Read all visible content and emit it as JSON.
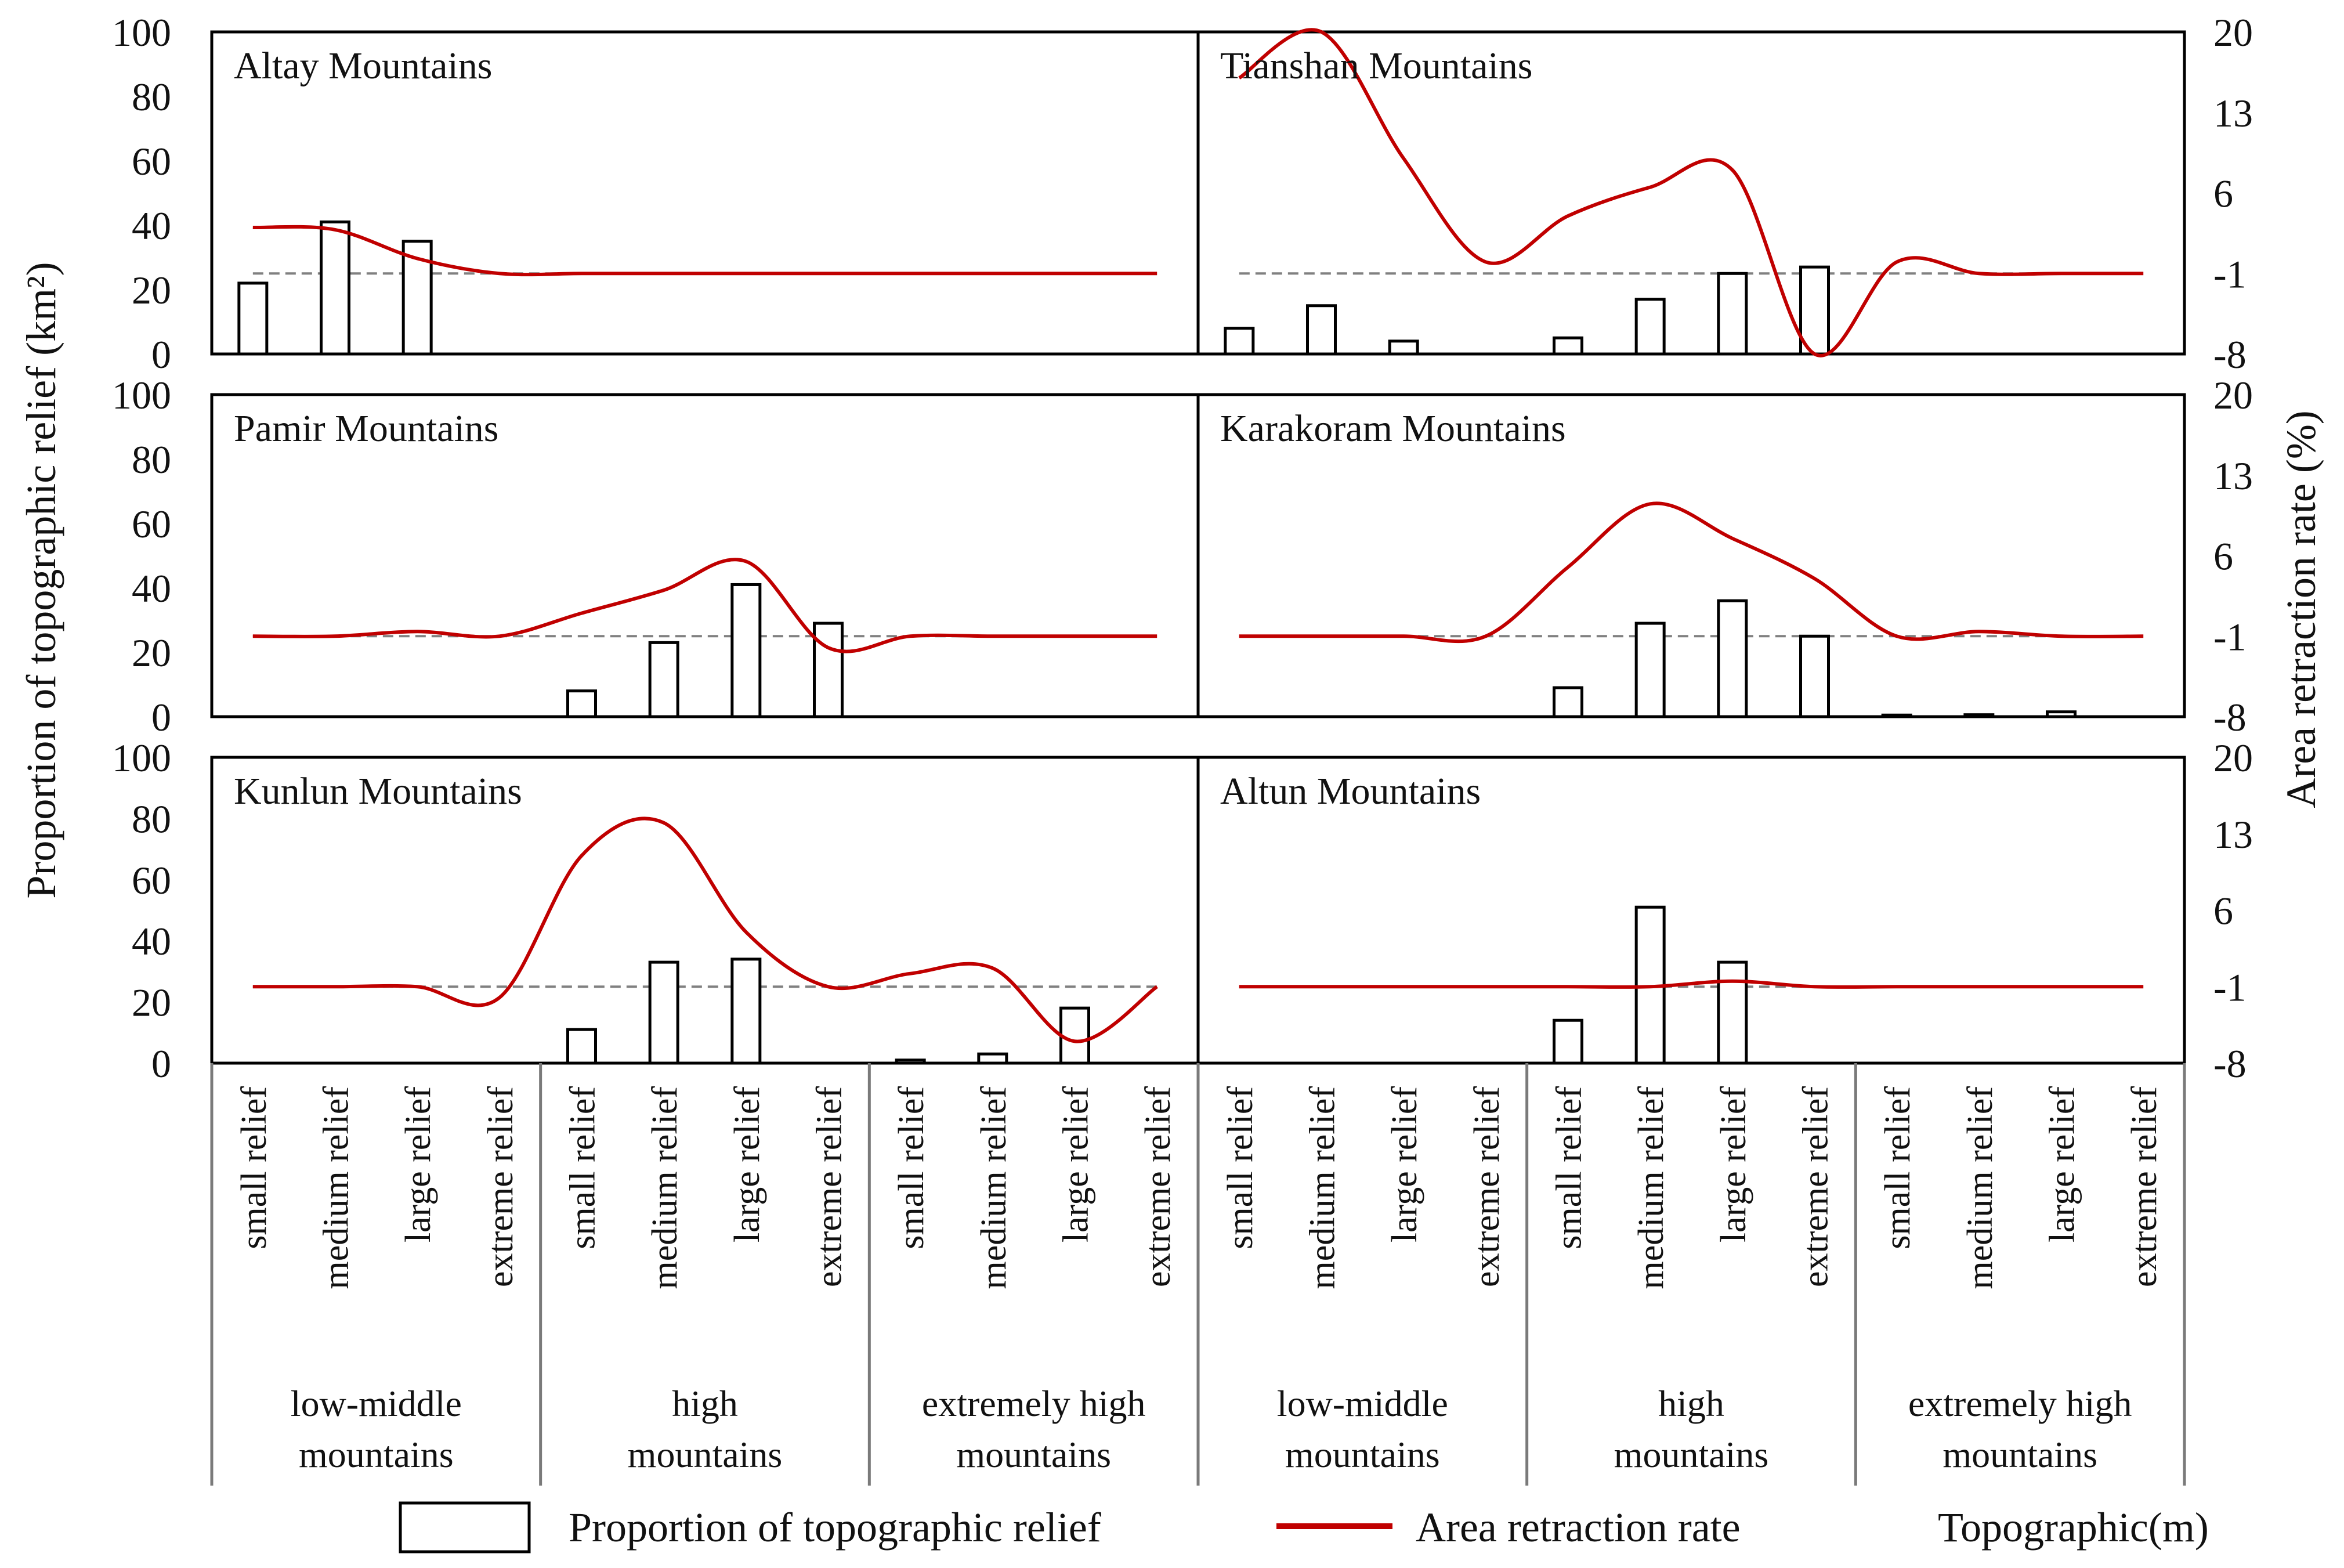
{
  "chart_data": {
    "type": "bar",
    "y_axis_left": {
      "label": "Proportion of topographic relief (km²)",
      "ticks": [
        "100",
        "80",
        "60",
        "40",
        "20",
        "0"
      ],
      "range": [
        0,
        100
      ]
    },
    "y_axis_right": {
      "label": "Area retraction rate (%)",
      "ticks": [
        "20",
        "13",
        "6",
        "-1",
        "-8"
      ],
      "range": [
        -8,
        20
      ]
    },
    "x_axis": {
      "categories": [
        "small relief",
        "medium relief",
        "large relief",
        "extreme relief",
        "small relief",
        "medium relief",
        "large relief",
        "extreme relief",
        "small relief",
        "medium relief",
        "large relief",
        "extreme relief"
      ],
      "groups": [
        {
          "label": "low-middle mountains"
        },
        {
          "label": "high mountains"
        },
        {
          "label": "extremely high mountains"
        }
      ]
    },
    "legend": {
      "bar": "Proportion of topographic relief",
      "line": "Area retraction rate",
      "axis_note": "Topographic(m)"
    },
    "colors": {
      "line": "#c00000",
      "bar_edge": "#000000",
      "baseline": "#808080"
    },
    "panels": [
      {
        "title": "Altay Mountains",
        "bars": [
          22,
          41,
          35,
          0,
          null,
          null,
          null,
          null,
          null,
          null,
          null,
          null
        ],
        "rate": [
          3.0,
          2.8,
          0.3,
          -1.0,
          -1.0,
          -1.0,
          -1.0,
          -1.0,
          -1.0,
          -1.0,
          -1.0,
          -1.0
        ]
      },
      {
        "title": "Tianshan Mountains",
        "bars": [
          8,
          15,
          4,
          0,
          5,
          17,
          25,
          27,
          null,
          null,
          null,
          null
        ],
        "rate": [
          16.0,
          20.0,
          9.0,
          0.0,
          4.0,
          6.5,
          8.0,
          -8.0,
          0.0,
          -1.0,
          -1.0,
          -1.0
        ]
      },
      {
        "title": "Pamir Mountains",
        "bars": [
          0,
          0,
          0,
          0,
          8,
          23,
          41,
          29,
          null,
          null,
          null,
          null
        ],
        "rate": [
          -1.0,
          -1.0,
          -0.6,
          -1.0,
          1.0,
          3.0,
          5.5,
          -2.0,
          -1.0,
          -1.0,
          -1.0,
          -1.0
        ]
      },
      {
        "title": "Karakoram Mountains",
        "bars": [
          0,
          0,
          0,
          0,
          9,
          29,
          36,
          25,
          0.5,
          0.6,
          1.5,
          null
        ],
        "rate": [
          -1.0,
          -1.0,
          -1.0,
          -1.0,
          5.0,
          10.5,
          7.5,
          4.0,
          -1.0,
          -0.6,
          -1.0,
          -1.0
        ]
      },
      {
        "title": "Kunlun Mountains",
        "bars": [
          0,
          0,
          0,
          0,
          11,
          33,
          34,
          0,
          1,
          3,
          18,
          null
        ],
        "rate": [
          -1.0,
          -1.0,
          -1.0,
          -2.0,
          11.0,
          14.0,
          4.0,
          -1.0,
          0.2,
          0.7,
          -6.0,
          -1.0
        ]
      },
      {
        "title": "Altun Mountains",
        "bars": [
          0,
          0,
          0,
          0,
          14,
          51,
          33,
          null,
          null,
          null,
          null,
          null
        ],
        "rate": [
          -1.0,
          -1.0,
          -1.0,
          -1.0,
          -1.0,
          -1.0,
          -0.5,
          -1.0,
          -1.0,
          -1.0,
          -1.0,
          -1.0
        ]
      }
    ]
  }
}
